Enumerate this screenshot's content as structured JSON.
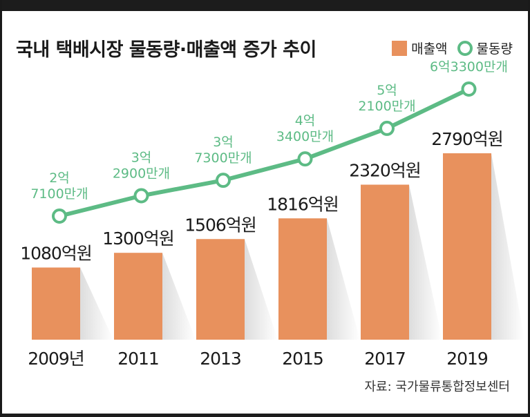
{
  "title": "국내 택배시장 물동량·매출액 증가 추이",
  "source": "자료: 국가물류통합정보센터",
  "colors": {
    "bar": "#e8915d",
    "line": "#5dbb85",
    "shadow": "#d9d9d9",
    "text": "#1a1a1a"
  },
  "chart_data": {
    "type": "bar",
    "title": "국내 택배시장 물동량·매출액 증가 추이",
    "categories": [
      "2009년",
      "2011",
      "2013",
      "2015",
      "2017",
      "2019"
    ],
    "legend": [
      "매출액",
      "물동량"
    ],
    "legend_position": "top-right",
    "series": [
      {
        "name": "매출액",
        "kind": "bar",
        "unit": "억원",
        "values": [
          1080,
          1300,
          1506,
          1816,
          2320,
          2790
        ],
        "labels": [
          "1080억원",
          "1300억원",
          "1506억원",
          "1816억원",
          "2320억원",
          "2790억원"
        ]
      },
      {
        "name": "물동량",
        "kind": "line",
        "unit": "개",
        "values": [
          271000000,
          329000000,
          373000000,
          434000000,
          521000000,
          633000000
        ],
        "labels": [
          [
            "2억",
            "7100만개"
          ],
          [
            "3억",
            "2900만개"
          ],
          [
            "3억",
            "7300만개"
          ],
          [
            "4억",
            "3400만개"
          ],
          [
            "5억",
            "2100만개"
          ],
          [
            "6억3300만개"
          ]
        ]
      }
    ]
  }
}
